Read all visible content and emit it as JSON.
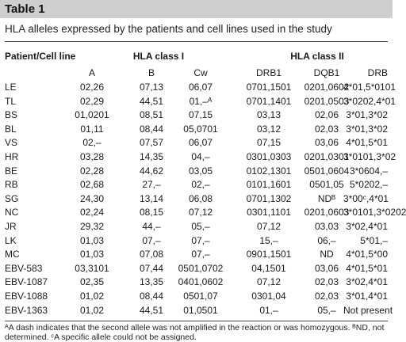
{
  "title": "Table 1",
  "caption": "HLA alleles expressed by the patients and cell lines used in the study",
  "groups": {
    "patient": "Patient/Cell line",
    "class1": "HLA class I",
    "class2": "HLA class II"
  },
  "columns": {
    "a": "A",
    "b": "B",
    "cw": "Cw",
    "drb1": "DRB1",
    "dqb1": "DQB1",
    "drb": "DRB"
  },
  "rows": [
    {
      "name": "LE",
      "a": "02,26",
      "b": "07,13",
      "cw": "06,07",
      "drb1": "0701,1501",
      "dqb1": "0201,0602",
      "drb": "4*01,5*0101"
    },
    {
      "name": "TL",
      "a": "02,29",
      "b": "44,51",
      "cw": "01,–ᴬ",
      "drb1": "0701,1401",
      "dqb1": "0201,0503",
      "drb": "3*0202,4*01"
    },
    {
      "name": "BS",
      "a": "01,0201",
      "b": "08,51",
      "cw": "07,15",
      "drb1": "03,13",
      "dqb1": "02,06",
      "drb": "3*01,3*02"
    },
    {
      "name": "BL",
      "a": "01,11",
      "b": "08,44",
      "cw": "05,0701",
      "drb1": "03,12",
      "dqb1": "02,03",
      "drb": "3*01,3*02"
    },
    {
      "name": "VS",
      "a": "02,–",
      "b": "07,57",
      "cw": "06,07",
      "drb1": "07,15",
      "dqb1": "03,06",
      "drb": "4*01,5*01"
    },
    {
      "name": "HR",
      "a": "03,28",
      "b": "14,35",
      "cw": "04,–",
      "drb1": "0301,0303",
      "dqb1": "0201,0301",
      "drb": "3*0101,3*02"
    },
    {
      "name": "BE",
      "a": "02,28",
      "b": "44,62",
      "cw": "03,05",
      "drb1": "0102,1301",
      "dqb1": "0501,0604",
      "drb": "3*0604,–"
    },
    {
      "name": "RB",
      "a": "02,68",
      "b": "27,–",
      "cw": "02,–",
      "drb1": "0101,1601",
      "dqb1": "0501,05",
      "drb": "5*0202,–"
    },
    {
      "name": "SG",
      "a": "24,30",
      "b": "13,14",
      "cw": "06,08",
      "drb1": "0701,1302",
      "dqb1": "NDᴮ",
      "drb": "3*00ᶜ,4*01"
    },
    {
      "name": "NC",
      "a": "02,24",
      "b": "08,15",
      "cw": "07,12",
      "drb1": "0301,1101",
      "dqb1": "0201,0603",
      "drb": "3*0101,3*0202"
    },
    {
      "name": "JR",
      "a": "29,32",
      "b": "44,–",
      "cw": "05,–",
      "drb1": "07,12",
      "dqb1": "03,03",
      "drb": "3*02,4*01"
    },
    {
      "name": "LK",
      "a": "01,03",
      "b": "07,–",
      "cw": "07,–",
      "drb1": "15,–",
      "dqb1": "06,–",
      "drb": "5*01,–"
    },
    {
      "name": "MC",
      "a": "01,03",
      "b": "07,08",
      "cw": "07,–",
      "drb1": "0901,1501",
      "dqb1": "ND",
      "drb": "4*01,5*00"
    },
    {
      "name": "EBV-583",
      "a": "03,3101",
      "b": "07,44",
      "cw": "0501,0702",
      "drb1": "04,1501",
      "dqb1": "03,06",
      "drb": "4*01,5*01"
    },
    {
      "name": "EBV-1087",
      "a": "02,35",
      "b": "13,35",
      "cw": "0401,0602",
      "drb1": "07,12",
      "dqb1": "02,03",
      "drb": "3*02,4*01"
    },
    {
      "name": "EBV-1088",
      "a": "01,02",
      "b": "08,44",
      "cw": "0501,07",
      "drb1": "0301,04",
      "dqb1": "02,03",
      "drb": "3*01,4*01"
    },
    {
      "name": "EBV-1363",
      "a": "01,02",
      "b": "44,51",
      "cw": "01,0501",
      "drb1": "01,–",
      "dqb1": "05,–",
      "drb": "Not present"
    }
  ],
  "footnote": "ᴬA dash indicates that the second allele was not amplified in the reaction or was homozygous. ᴮND, not determined. ᶜA specific allele could not be assigned."
}
